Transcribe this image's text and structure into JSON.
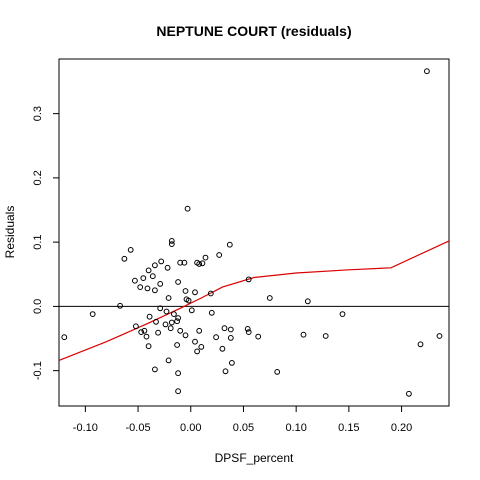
{
  "chart_data": {
    "type": "scatter",
    "title": "NEPTUNE COURT (residuals)",
    "xlabel": "DPSF_percent",
    "ylabel": "Residuals",
    "xlim": [
      -0.125,
      0.245
    ],
    "ylim": [
      -0.155,
      0.385
    ],
    "xticks": [
      -0.1,
      -0.05,
      0.0,
      0.05,
      0.1,
      0.15,
      0.2
    ],
    "xtick_labels": [
      "-0.10",
      "-0.05",
      "0.00",
      "0.05",
      "0.10",
      "0.15",
      "0.20"
    ],
    "yticks": [
      -0.1,
      0.0,
      0.1,
      0.2,
      0.3
    ],
    "ytick_labels": [
      "-0.1",
      "0.0",
      "0.1",
      "0.2",
      "0.3"
    ],
    "grid": false,
    "reference_line_y": 0.0,
    "colors": {
      "points": "#000000",
      "smooth": "#dd0000",
      "axis": "#000000"
    },
    "points": [
      {
        "x": 0.224,
        "y": 0.366
      },
      {
        "x": -0.003,
        "y": 0.152
      },
      {
        "x": -0.057,
        "y": 0.088
      },
      {
        "x": -0.063,
        "y": 0.074
      },
      {
        "x": -0.018,
        "y": 0.102
      },
      {
        "x": -0.018,
        "y": 0.097
      },
      {
        "x": 0.037,
        "y": 0.096
      },
      {
        "x": 0.027,
        "y": 0.08
      },
      {
        "x": 0.014,
        "y": 0.076
      },
      {
        "x": -0.028,
        "y": 0.07
      },
      {
        "x": -0.01,
        "y": 0.068
      },
      {
        "x": -0.006,
        "y": 0.068
      },
      {
        "x": 0.006,
        "y": 0.068
      },
      {
        "x": 0.008,
        "y": 0.066
      },
      {
        "x": 0.011,
        "y": 0.067
      },
      {
        "x": -0.034,
        "y": 0.064
      },
      {
        "x": -0.04,
        "y": 0.056
      },
      {
        "x": -0.022,
        "y": 0.06
      },
      {
        "x": -0.036,
        "y": 0.047
      },
      {
        "x": -0.053,
        "y": 0.04
      },
      {
        "x": -0.045,
        "y": 0.044
      },
      {
        "x": -0.029,
        "y": 0.035
      },
      {
        "x": -0.012,
        "y": 0.038
      },
      {
        "x": -0.048,
        "y": 0.03
      },
      {
        "x": -0.041,
        "y": 0.028
      },
      {
        "x": -0.034,
        "y": 0.025
      },
      {
        "x": -0.005,
        "y": 0.024
      },
      {
        "x": 0.004,
        "y": 0.022
      },
      {
        "x": 0.019,
        "y": 0.02
      },
      {
        "x": -0.021,
        "y": 0.013
      },
      {
        "x": -0.004,
        "y": 0.011
      },
      {
        "x": -0.002,
        "y": 0.009
      },
      {
        "x": -0.067,
        "y": 0.001
      },
      {
        "x": 0.055,
        "y": 0.042
      },
      {
        "x": 0.075,
        "y": 0.013
      },
      {
        "x": 0.111,
        "y": 0.008
      },
      {
        "x": -0.029,
        "y": -0.003
      },
      {
        "x": -0.023,
        "y": -0.008
      },
      {
        "x": -0.016,
        "y": -0.012
      },
      {
        "x": -0.012,
        "y": -0.018
      },
      {
        "x": 0.001,
        "y": -0.006
      },
      {
        "x": 0.02,
        "y": -0.01
      },
      {
        "x": -0.039,
        "y": -0.016
      },
      {
        "x": -0.033,
        "y": -0.024
      },
      {
        "x": -0.024,
        "y": -0.028
      },
      {
        "x": -0.018,
        "y": -0.025
      },
      {
        "x": -0.013,
        "y": -0.023
      },
      {
        "x": -0.052,
        "y": -0.031
      },
      {
        "x": -0.044,
        "y": -0.038
      },
      {
        "x": -0.047,
        "y": -0.04
      },
      {
        "x": -0.031,
        "y": -0.041
      },
      {
        "x": -0.019,
        "y": -0.034
      },
      {
        "x": -0.01,
        "y": -0.038
      },
      {
        "x": 0.008,
        "y": -0.038
      },
      {
        "x": 0.032,
        "y": -0.034
      },
      {
        "x": 0.038,
        "y": -0.036
      },
      {
        "x": 0.054,
        "y": -0.035
      },
      {
        "x": 0.055,
        "y": -0.04
      },
      {
        "x": -0.042,
        "y": -0.047
      },
      {
        "x": -0.005,
        "y": -0.045
      },
      {
        "x": 0.024,
        "y": -0.048
      },
      {
        "x": 0.038,
        "y": -0.049
      },
      {
        "x": 0.064,
        "y": -0.047
      },
      {
        "x": 0.004,
        "y": -0.055
      },
      {
        "x": 0.01,
        "y": -0.063
      },
      {
        "x": -0.04,
        "y": -0.062
      },
      {
        "x": -0.013,
        "y": -0.06
      },
      {
        "x": 0.03,
        "y": -0.066
      },
      {
        "x": 0.006,
        "y": -0.07
      },
      {
        "x": -0.021,
        "y": -0.084
      },
      {
        "x": 0.039,
        "y": -0.088
      },
      {
        "x": -0.034,
        "y": -0.098
      },
      {
        "x": 0.033,
        "y": -0.101
      },
      {
        "x": -0.012,
        "y": -0.104
      },
      {
        "x": -0.012,
        "y": -0.132
      },
      {
        "x": 0.082,
        "y": -0.102
      },
      {
        "x": -0.093,
        "y": -0.012
      },
      {
        "x": -0.12,
        "y": -0.048
      },
      {
        "x": 0.107,
        "y": -0.044
      },
      {
        "x": 0.128,
        "y": -0.046
      },
      {
        "x": 0.144,
        "y": -0.012
      },
      {
        "x": 0.207,
        "y": -0.136
      },
      {
        "x": 0.218,
        "y": -0.059
      },
      {
        "x": 0.236,
        "y": -0.046
      }
    ],
    "smooth_line": {
      "x": [
        -0.125,
        -0.08,
        -0.04,
        -0.01,
        0.01,
        0.03,
        0.06,
        0.1,
        0.15,
        0.19,
        0.245
      ],
      "y": [
        -0.084,
        -0.055,
        -0.026,
        -0.003,
        0.013,
        0.03,
        0.045,
        0.052,
        0.057,
        0.06,
        0.102
      ]
    }
  }
}
